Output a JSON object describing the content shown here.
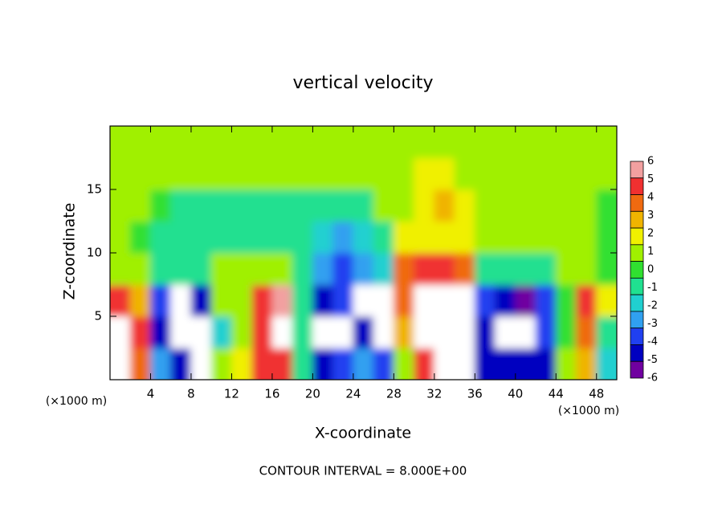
{
  "chart_data": {
    "type": "heatmap",
    "title": "vertical velocity",
    "xlabel": "X-coordinate",
    "ylabel": "Z-coordinate",
    "x_unit_label": "(×1000 m)",
    "y_unit_label": "(×1000 m)",
    "annotation": "CONTOUR INTERVAL = 8.000E+00",
    "xlim": [
      0,
      50
    ],
    "ylim": [
      0,
      20
    ],
    "xticks": [
      4,
      8,
      12,
      16,
      20,
      24,
      28,
      32,
      36,
      40,
      44,
      48
    ],
    "yticks": [
      5,
      10,
      15
    ],
    "x": [
      1,
      3,
      5,
      7,
      9,
      11,
      13,
      15,
      17,
      19,
      21,
      23,
      25,
      27,
      29,
      31,
      33,
      35,
      37,
      39,
      41,
      43,
      45,
      47,
      49
    ],
    "y": [
      1.25,
      3.75,
      6.25,
      8.75,
      11.25,
      13.75,
      16.25,
      18.75
    ],
    "values": [
      [
        8,
        4,
        -3,
        -5,
        -8,
        0.5,
        2,
        5,
        5,
        -1,
        -5,
        -4,
        -3,
        -4,
        1,
        5,
        8,
        8,
        -5,
        -5,
        -5,
        -5,
        0.5,
        3,
        -2
      ],
      [
        8,
        5,
        -5,
        -8,
        -8,
        -2,
        1,
        5,
        8,
        -1,
        -8,
        -8,
        -5,
        -8,
        3,
        8,
        9,
        8,
        -5,
        -8,
        -8,
        -4,
        0,
        4,
        -1
      ],
      [
        5,
        3,
        -4,
        -8,
        -5,
        0.5,
        1,
        5,
        6,
        -0.5,
        -5,
        -4,
        -8,
        -8,
        4,
        9,
        9,
        7,
        -4,
        -5,
        -6,
        -4,
        0,
        5,
        2
      ],
      [
        0.5,
        0.5,
        -0.5,
        -1,
        -0.5,
        0.5,
        0.5,
        1,
        0.5,
        -0.5,
        -3,
        -4,
        -3,
        -2,
        4,
        5,
        5,
        4,
        -0.5,
        -1,
        -1,
        -0.5,
        0.5,
        0.5,
        0
      ],
      [
        0.5,
        0,
        -0.5,
        -0.5,
        -0.5,
        -0.5,
        -0.5,
        -0.5,
        -0.5,
        -1,
        -1.5,
        -3,
        -2,
        -0.5,
        1.5,
        1.5,
        1.5,
        1.5,
        0.5,
        0.5,
        0.5,
        0.5,
        1,
        0.5,
        0
      ],
      [
        0.5,
        0.5,
        0,
        -0.5,
        -0.5,
        -0.5,
        -0.5,
        -0.5,
        -0.5,
        -0.5,
        -0.5,
        -1,
        -0.5,
        0.5,
        1,
        2,
        2.5,
        1.5,
        1,
        0.5,
        0.5,
        0.5,
        1,
        0.5,
        0
      ],
      [
        0.5,
        0.5,
        0.5,
        0.5,
        0.5,
        0.5,
        0.5,
        0.5,
        0.5,
        0.5,
        0.5,
        0.5,
        0.5,
        0.5,
        1,
        1.5,
        1.5,
        1,
        1,
        0.5,
        0.5,
        0.5,
        0.5,
        0.5,
        0.5
      ],
      [
        0.5,
        0.5,
        0.5,
        0.5,
        0.5,
        0.5,
        0.5,
        0.5,
        0.5,
        0.5,
        0.5,
        0.5,
        0.5,
        0.5,
        1,
        1,
        1,
        0.5,
        0.5,
        0.5,
        0.5,
        0.5,
        0.5,
        0.5,
        0.5
      ]
    ],
    "colorbar": {
      "ticks": [
        6,
        5,
        4,
        3,
        2,
        1,
        0,
        -1,
        -2,
        -3,
        -4,
        -5,
        -6
      ],
      "colors": [
        "#f2a0a0",
        "#f03030",
        "#f06a10",
        "#f0b400",
        "#f0f000",
        "#a0f000",
        "#30e030",
        "#20e090",
        "#20d0d0",
        "#30a0f0",
        "#2040f0",
        "#0000c0",
        "#7000a0"
      ]
    },
    "outside_color": "#ffffff"
  }
}
